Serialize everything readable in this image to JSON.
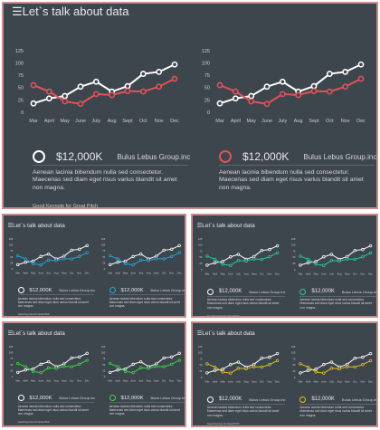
{
  "slide_title": "Let`s talk about data",
  "footer": "Good Keynote for Great Pitch",
  "value_label": "$12,000K",
  "company_label": "Bulus Lebus Group.inc",
  "description": "Aenean lacinia bibendum nulla sed consectetur. Maecenas sed diam eget risus varius blandit sit amet non magna.",
  "menu_icon": "hamburger-menu-icon",
  "chart_data": {
    "type": "line",
    "categories": [
      "Mar",
      "April",
      "May",
      "June",
      "July",
      "Aug",
      "Sept",
      "Oct",
      "Nov",
      "Dec"
    ],
    "ylim": [
      0,
      125
    ],
    "yticks": [
      0,
      25,
      50,
      75,
      100,
      125
    ],
    "series": [
      {
        "values": [
          18,
          28,
          33,
          52,
          62,
          42,
          53,
          78,
          82,
          97
        ],
        "color": "#ffffff"
      },
      {
        "values": [
          55,
          42,
          22,
          17,
          37,
          35,
          43,
          42,
          52,
          68
        ]
      }
    ]
  },
  "slides": [
    {
      "accent": "#e0535a"
    },
    {
      "accent": "#1fa9d6"
    },
    {
      "accent": "#27c9a6"
    },
    {
      "accent": "#3fd34b"
    },
    {
      "accent": "#e3bf26"
    }
  ]
}
